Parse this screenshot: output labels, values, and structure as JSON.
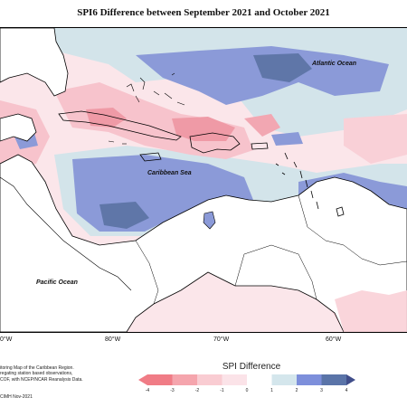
{
  "map": {
    "title": "SPI6 Difference between September 2021 and October 2021",
    "labels": {
      "atlantic": "Atlantic Ocean",
      "caribbean": "Caribbean Sea",
      "pacific": "Pacific Ocean"
    },
    "longitudes": [
      "0°W",
      "80°W",
      "70°W",
      "60°W"
    ]
  },
  "legend": {
    "title": "SPI Difference",
    "ticks": [
      "-4",
      "-3",
      "-2",
      "-1",
      "0",
      "1",
      "2",
      "3",
      "4"
    ],
    "colors": [
      "#f07c86",
      "#f5a5ad",
      "#f9ccd2",
      "#fbe3e8",
      "#ffffff",
      "#d4e6ec",
      "#7d8fdb",
      "#5a74a8",
      "#404e8a"
    ]
  },
  "footer": {
    "lines": [
      "itoring Map of the Caribbean Region.",
      "regating station based observations,",
      "COF, with NCEP/NCAR Reanalysis Data."
    ],
    "copyright": "CIMH Nov-2021"
  }
}
